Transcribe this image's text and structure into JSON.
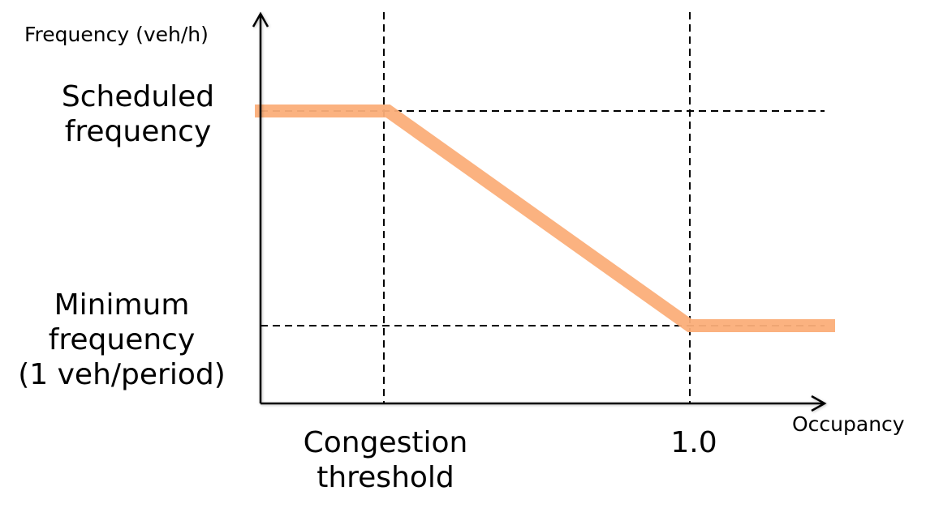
{
  "chart_data": {
    "type": "line",
    "ylabel": "Frequency (veh/h)",
    "xlabel": "Occupancy",
    "x_ticks": [
      "Congestion threshold",
      "1.0"
    ],
    "y_ticks": [
      "Scheduled frequency",
      "Minimum frequency (1 veh/period)"
    ],
    "y_tick_lines": [
      "Scheduled",
      "frequency",
      "Minimum",
      "frequency",
      "(1 veh/period)"
    ],
    "x_tick_lines": [
      "Congestion",
      "threshold",
      "1.0"
    ],
    "series": [
      {
        "points": [
          {
            "x": "0",
            "y": "Scheduled frequency"
          },
          {
            "x": "Congestion threshold",
            "y": "Scheduled frequency"
          },
          {
            "x": "1.0",
            "y": "Minimum frequency (1 veh/period)"
          },
          {
            "x": "beyond 1.0",
            "y": "Minimum frequency (1 veh/period)"
          }
        ],
        "color": "#FBAE79"
      }
    ],
    "grid": "dashed reference lines at tick values",
    "axis_color": "#000000"
  }
}
